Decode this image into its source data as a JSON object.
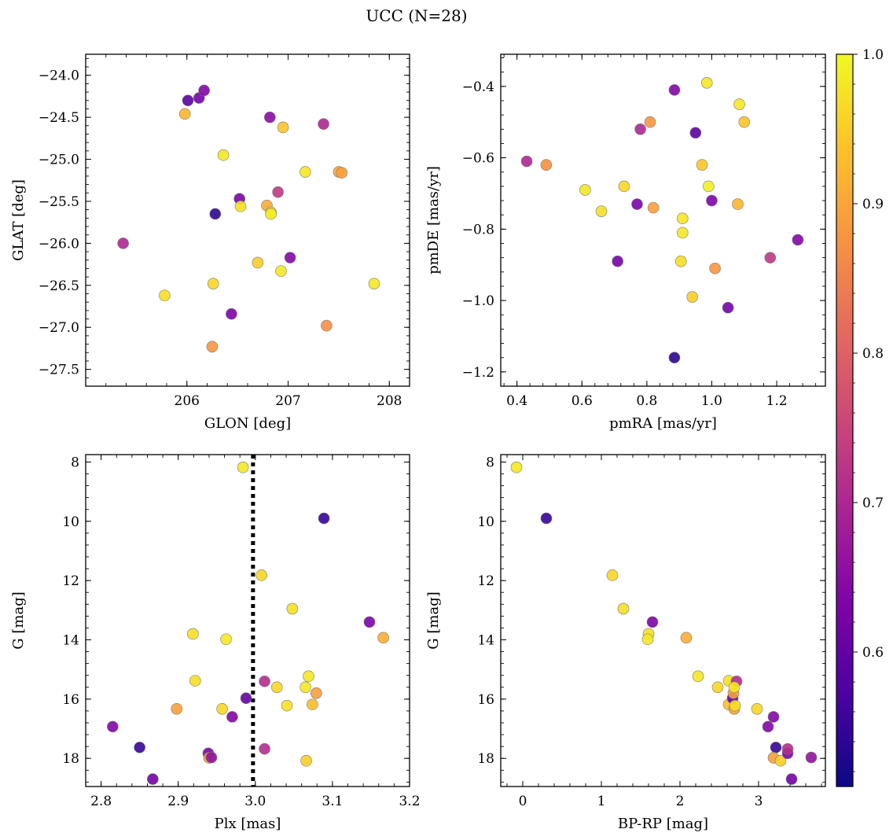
{
  "figure": {
    "title": "UCC (N=28)"
  },
  "colormap": {
    "name": "plasma",
    "min": 0.51,
    "max": 1.0,
    "ticks": [
      0.6,
      0.7,
      0.8,
      0.9,
      1.0
    ],
    "tick_labels": [
      "0.6",
      "0.7",
      "0.8",
      "0.9",
      "1.0"
    ]
  },
  "chart_data": [
    {
      "type": "scatter",
      "title": "",
      "xlabel": "GLON [deg]",
      "ylabel": "GLAT [deg]",
      "xlim": [
        205.0,
        208.2
      ],
      "ylim": [
        -27.7,
        -23.75
      ],
      "y_inverted": false,
      "xticks": [
        206,
        207,
        208
      ],
      "xtick_labels": [
        "206",
        "207",
        "208"
      ],
      "yticks": [
        -27.5,
        -27.0,
        -26.5,
        -26.0,
        -25.5,
        -25.0,
        -24.5,
        -24.0
      ],
      "ytick_labels": [
        "−27.5",
        "−27.0",
        "−26.5",
        "−26.0",
        "−25.5",
        "−25.0",
        "−24.5",
        "−24.0"
      ],
      "grid": false,
      "points": [
        {
          "x": 205.37,
          "y": -26.0,
          "c": 0.7
        },
        {
          "x": 205.78,
          "y": -26.62,
          "c": 0.97
        },
        {
          "x": 205.98,
          "y": -24.46,
          "c": 0.92
        },
        {
          "x": 206.01,
          "y": -24.3,
          "c": 0.59
        },
        {
          "x": 206.12,
          "y": -24.27,
          "c": 0.62
        },
        {
          "x": 206.17,
          "y": -24.18,
          "c": 0.64
        },
        {
          "x": 206.25,
          "y": -27.23,
          "c": 0.88
        },
        {
          "x": 206.26,
          "y": -26.48,
          "c": 0.96
        },
        {
          "x": 206.28,
          "y": -25.65,
          "c": 0.54
        },
        {
          "x": 206.36,
          "y": -24.95,
          "c": 0.98
        },
        {
          "x": 206.44,
          "y": -26.84,
          "c": 0.63
        },
        {
          "x": 206.52,
          "y": -25.47,
          "c": 0.63
        },
        {
          "x": 206.53,
          "y": -25.56,
          "c": 0.97
        },
        {
          "x": 206.7,
          "y": -26.23,
          "c": 0.95
        },
        {
          "x": 206.79,
          "y": -25.55,
          "c": 0.91
        },
        {
          "x": 206.82,
          "y": -24.5,
          "c": 0.65
        },
        {
          "x": 206.83,
          "y": -25.63,
          "c": 0.96
        },
        {
          "x": 206.83,
          "y": -25.65,
          "c": 0.99
        },
        {
          "x": 206.9,
          "y": -25.39,
          "c": 0.73
        },
        {
          "x": 206.93,
          "y": -26.33,
          "c": 0.98
        },
        {
          "x": 206.95,
          "y": -24.62,
          "c": 0.94
        },
        {
          "x": 207.02,
          "y": -26.17,
          "c": 0.64
        },
        {
          "x": 207.17,
          "y": -25.15,
          "c": 0.98
        },
        {
          "x": 207.35,
          "y": -24.58,
          "c": 0.7
        },
        {
          "x": 207.38,
          "y": -26.98,
          "c": 0.87
        },
        {
          "x": 207.5,
          "y": -25.15,
          "c": 0.9
        },
        {
          "x": 207.53,
          "y": -25.16,
          "c": 0.89
        },
        {
          "x": 207.85,
          "y": -26.48,
          "c": 0.98
        }
      ]
    },
    {
      "type": "scatter",
      "title": "",
      "xlabel": "pmRA [mas/yr]",
      "ylabel": "pmDE [mas/yr]",
      "xlim": [
        0.35,
        1.35
      ],
      "ylim": [
        -1.24,
        -0.31
      ],
      "y_inverted": false,
      "xticks": [
        0.4,
        0.6,
        0.8,
        1.0,
        1.2
      ],
      "xtick_labels": [
        "0.4",
        "0.6",
        "0.8",
        "1.0",
        "1.2"
      ],
      "yticks": [
        -1.2,
        -1.0,
        -0.8,
        -0.6,
        -0.4
      ],
      "ytick_labels": [
        "−1.2",
        "−1.0",
        "−0.8",
        "−0.6",
        "−0.4"
      ],
      "grid": false,
      "points": [
        {
          "x": 0.43,
          "y": -0.61,
          "c": 0.7
        },
        {
          "x": 0.49,
          "y": -0.62,
          "c": 0.87
        },
        {
          "x": 0.61,
          "y": -0.69,
          "c": 0.98
        },
        {
          "x": 0.66,
          "y": -0.75,
          "c": 0.97
        },
        {
          "x": 0.71,
          "y": -0.89,
          "c": 0.62
        },
        {
          "x": 0.73,
          "y": -0.68,
          "c": 0.96
        },
        {
          "x": 0.77,
          "y": -0.73,
          "c": 0.63
        },
        {
          "x": 0.78,
          "y": -0.52,
          "c": 0.7
        },
        {
          "x": 0.81,
          "y": -0.5,
          "c": 0.88
        },
        {
          "x": 0.82,
          "y": -0.74,
          "c": 0.89
        },
        {
          "x": 0.885,
          "y": -0.41,
          "c": 0.64
        },
        {
          "x": 0.885,
          "y": -1.16,
          "c": 0.54
        },
        {
          "x": 0.905,
          "y": -0.89,
          "c": 0.97
        },
        {
          "x": 0.91,
          "y": -0.77,
          "c": 0.98
        },
        {
          "x": 0.91,
          "y": -0.81,
          "c": 0.98
        },
        {
          "x": 0.94,
          "y": -0.99,
          "c": 0.95
        },
        {
          "x": 0.95,
          "y": -0.53,
          "c": 0.59
        },
        {
          "x": 0.97,
          "y": -0.62,
          "c": 0.94
        },
        {
          "x": 0.985,
          "y": -0.39,
          "c": 0.98
        },
        {
          "x": 0.99,
          "y": -0.68,
          "c": 0.99
        },
        {
          "x": 1.0,
          "y": -0.72,
          "c": 0.63
        },
        {
          "x": 1.01,
          "y": -0.91,
          "c": 0.88
        },
        {
          "x": 1.05,
          "y": -1.02,
          "c": 0.62
        },
        {
          "x": 1.08,
          "y": -0.73,
          "c": 0.92
        },
        {
          "x": 1.085,
          "y": -0.45,
          "c": 0.98
        },
        {
          "x": 1.1,
          "y": -0.5,
          "c": 0.94
        },
        {
          "x": 1.18,
          "y": -0.88,
          "c": 0.73
        },
        {
          "x": 1.265,
          "y": -0.83,
          "c": 0.64
        }
      ]
    },
    {
      "type": "scatter",
      "title": "",
      "xlabel": "Plx [mas]",
      "ylabel": "G [mag]",
      "xlim": [
        2.78,
        3.2
      ],
      "ylim": [
        18.95,
        7.75
      ],
      "y_inverted": true,
      "xticks": [
        2.8,
        2.9,
        3.0,
        3.1,
        3.2
      ],
      "xtick_labels": [
        "2.8",
        "2.9",
        "3.0",
        "3.1",
        "3.2"
      ],
      "yticks": [
        8,
        10,
        12,
        14,
        16,
        18
      ],
      "ytick_labels": [
        "8",
        "10",
        "12",
        "14",
        "16",
        "18"
      ],
      "grid": false,
      "vline": {
        "x": 2.997,
        "style": "dotted",
        "color": "#000000"
      },
      "points": [
        {
          "x": 2.815,
          "y": 16.93,
          "c": 0.64
        },
        {
          "x": 2.85,
          "y": 17.63,
          "c": 0.55
        },
        {
          "x": 2.867,
          "y": 18.7,
          "c": 0.62
        },
        {
          "x": 2.898,
          "y": 16.33,
          "c": 0.89
        },
        {
          "x": 2.919,
          "y": 13.8,
          "c": 0.97
        },
        {
          "x": 2.922,
          "y": 15.38,
          "c": 0.97
        },
        {
          "x": 2.939,
          "y": 17.83,
          "c": 0.63
        },
        {
          "x": 2.94,
          "y": 17.98,
          "c": 0.89
        },
        {
          "x": 2.943,
          "y": 17.97,
          "c": 0.66
        },
        {
          "x": 2.957,
          "y": 16.33,
          "c": 0.96
        },
        {
          "x": 2.962,
          "y": 13.98,
          "c": 0.98
        },
        {
          "x": 2.97,
          "y": 16.6,
          "c": 0.64
        },
        {
          "x": 2.984,
          "y": 8.18,
          "c": 0.98
        },
        {
          "x": 2.988,
          "y": 15.97,
          "c": 0.6
        },
        {
          "x": 3.008,
          "y": 11.82,
          "c": 0.96
        },
        {
          "x": 3.012,
          "y": 15.4,
          "c": 0.71
        },
        {
          "x": 3.012,
          "y": 17.68,
          "c": 0.71
        },
        {
          "x": 3.028,
          "y": 15.6,
          "c": 0.96
        },
        {
          "x": 3.041,
          "y": 16.22,
          "c": 0.97
        },
        {
          "x": 3.048,
          "y": 12.95,
          "c": 0.97
        },
        {
          "x": 3.065,
          "y": 15.6,
          "c": 0.98
        },
        {
          "x": 3.066,
          "y": 18.08,
          "c": 0.95
        },
        {
          "x": 3.069,
          "y": 15.23,
          "c": 0.98
        },
        {
          "x": 3.074,
          "y": 16.18,
          "c": 0.93
        },
        {
          "x": 3.079,
          "y": 15.8,
          "c": 0.89
        },
        {
          "x": 3.089,
          "y": 9.9,
          "c": 0.55
        },
        {
          "x": 3.148,
          "y": 13.4,
          "c": 0.63
        },
        {
          "x": 3.166,
          "y": 13.93,
          "c": 0.91
        }
      ]
    },
    {
      "type": "scatter",
      "title": "",
      "xlabel": "BP-RP [mag]",
      "ylabel": "G [mag]",
      "xlim": [
        -0.28,
        3.85
      ],
      "ylim": [
        18.95,
        7.75
      ],
      "y_inverted": true,
      "xticks": [
        0,
        1,
        2,
        3
      ],
      "xtick_labels": [
        "0",
        "1",
        "2",
        "3"
      ],
      "yticks": [
        8,
        10,
        12,
        14,
        16,
        18
      ],
      "ytick_labels": [
        "8",
        "10",
        "12",
        "14",
        "16",
        "18"
      ],
      "grid": false,
      "points": [
        {
          "x": -0.08,
          "y": 8.18,
          "c": 0.98
        },
        {
          "x": 0.3,
          "y": 9.9,
          "c": 0.55
        },
        {
          "x": 1.14,
          "y": 11.82,
          "c": 0.96
        },
        {
          "x": 1.28,
          "y": 12.95,
          "c": 0.97
        },
        {
          "x": 1.6,
          "y": 13.8,
          "c": 0.97
        },
        {
          "x": 1.59,
          "y": 13.98,
          "c": 0.98
        },
        {
          "x": 1.65,
          "y": 13.4,
          "c": 0.63
        },
        {
          "x": 2.08,
          "y": 13.93,
          "c": 0.91
        },
        {
          "x": 2.23,
          "y": 15.23,
          "c": 0.98
        },
        {
          "x": 2.48,
          "y": 15.6,
          "c": 0.96
        },
        {
          "x": 2.62,
          "y": 15.38,
          "c": 0.97
        },
        {
          "x": 2.62,
          "y": 16.18,
          "c": 0.93
        },
        {
          "x": 2.67,
          "y": 15.97,
          "c": 0.6
        },
        {
          "x": 2.68,
          "y": 15.8,
          "c": 0.89
        },
        {
          "x": 2.72,
          "y": 15.4,
          "c": 0.71
        },
        {
          "x": 2.69,
          "y": 16.33,
          "c": 0.89
        },
        {
          "x": 2.7,
          "y": 16.22,
          "c": 0.97
        },
        {
          "x": 2.69,
          "y": 15.6,
          "c": 0.98
        },
        {
          "x": 2.98,
          "y": 16.33,
          "c": 0.96
        },
        {
          "x": 3.12,
          "y": 16.93,
          "c": 0.64
        },
        {
          "x": 3.19,
          "y": 16.6,
          "c": 0.64
        },
        {
          "x": 3.22,
          "y": 17.63,
          "c": 0.55
        },
        {
          "x": 3.19,
          "y": 17.98,
          "c": 0.89
        },
        {
          "x": 3.28,
          "y": 18.08,
          "c": 0.95
        },
        {
          "x": 3.37,
          "y": 17.83,
          "c": 0.63
        },
        {
          "x": 3.37,
          "y": 17.68,
          "c": 0.71
        },
        {
          "x": 3.42,
          "y": 18.7,
          "c": 0.62
        },
        {
          "x": 3.67,
          "y": 17.97,
          "c": 0.66
        }
      ]
    }
  ]
}
